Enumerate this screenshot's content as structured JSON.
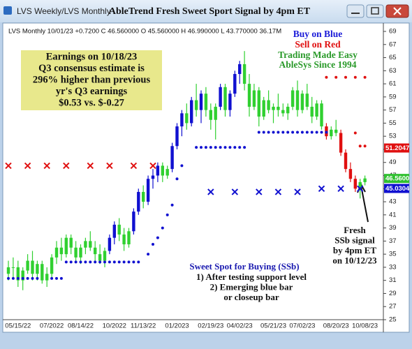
{
  "window_title": "LVS Weekly/LVS  Monthly",
  "chart_data": {
    "type": "candlestick",
    "title": "AbleTrend Fresh Sweet Sport Signal by 4pm ET",
    "info": "LVS  Monthly 10/01/23 +0.7200 C 46.560000 O 45.560000 H 46.990000 L 43.770000 36.17M",
    "legend": [
      {
        "text": "Buy on Blue",
        "color": "#1a1ad8"
      },
      {
        "text": "Sell on Red",
        "color": "#e01010"
      },
      {
        "text": "Trading Made Easy",
        "color": "#2a9a2a"
      },
      {
        "text": "AbleSys Since 1994",
        "color": "#2a9a2a"
      }
    ],
    "colors": {
      "b": "#1010d0",
      "g": "#30d030",
      "r": "#e01010"
    },
    "categories": [
      null,
      null,
      "05/15/22",
      null,
      null,
      null,
      null,
      null,
      null,
      "07/2022",
      null,
      null,
      null,
      null,
      null,
      "08/14/22",
      null,
      null,
      null,
      null,
      null,
      null,
      "10/2022",
      null,
      null,
      null,
      null,
      null,
      "11/13/22",
      null,
      null,
      null,
      null,
      null,
      null,
      "01/2023",
      null,
      null,
      null,
      null,
      null,
      null,
      "02/19/23",
      null,
      null,
      null,
      null,
      null,
      "04/02/23",
      null,
      null,
      null,
      null,
      null,
      null,
      "05/21/23",
      null,
      null,
      null,
      null,
      null,
      "07/02/23",
      null,
      null,
      null,
      null,
      null,
      null,
      "08/20/23",
      null,
      null,
      null,
      null,
      null,
      "10/08/23"
    ],
    "candles": [
      [
        32,
        34,
        31,
        33,
        "g"
      ],
      [
        33,
        34.5,
        31.5,
        33,
        "g"
      ],
      [
        33,
        34,
        30,
        31,
        "g"
      ],
      [
        31,
        33,
        29.5,
        32.5,
        "g"
      ],
      [
        32.5,
        35,
        32,
        34,
        "g"
      ],
      [
        34,
        35.5,
        31,
        32,
        "g"
      ],
      [
        32,
        34,
        31,
        33.5,
        "g"
      ],
      [
        33.5,
        34,
        30.5,
        31,
        "g"
      ],
      [
        31,
        33,
        30,
        32,
        "g"
      ],
      [
        32,
        35,
        31.5,
        34.5,
        "g"
      ],
      [
        34.5,
        37,
        33.5,
        36,
        "g"
      ],
      [
        36,
        37.5,
        34,
        35,
        "g"
      ],
      [
        35,
        38,
        34.5,
        37.5,
        "g"
      ],
      [
        37.5,
        38,
        35,
        36,
        "g"
      ],
      [
        36,
        37,
        34,
        34.5,
        "g"
      ],
      [
        34.5,
        36.5,
        33.5,
        36,
        "g"
      ],
      [
        36,
        37.5,
        35,
        37,
        "g"
      ],
      [
        37,
        38.5,
        35.5,
        36,
        "g"
      ],
      [
        36,
        37,
        34,
        35,
        "g"
      ],
      [
        35,
        36.5,
        33.5,
        34,
        "g"
      ],
      [
        34,
        36,
        33,
        35.5,
        "g"
      ],
      [
        35.5,
        38,
        35,
        37.5,
        "b"
      ],
      [
        37.5,
        40,
        36.5,
        39.5,
        "b"
      ],
      [
        39.5,
        40.5,
        37,
        38,
        "g"
      ],
      [
        38,
        39,
        35.5,
        36.5,
        "g"
      ],
      [
        36.5,
        39,
        36,
        38.5,
        "g"
      ],
      [
        38.5,
        42,
        38,
        41.5,
        "b"
      ],
      [
        41.5,
        45,
        41,
        44.5,
        "b"
      ],
      [
        44.5,
        45.5,
        42,
        43,
        "g"
      ],
      [
        43,
        47,
        42.5,
        46.5,
        "b"
      ],
      [
        46.5,
        48,
        45,
        47,
        "b"
      ],
      [
        47,
        49,
        46,
        48.5,
        "b"
      ],
      [
        48.5,
        49,
        46,
        47,
        "g"
      ],
      [
        47,
        48.5,
        46.5,
        48,
        "g"
      ],
      [
        48,
        52,
        47.5,
        51.5,
        "b"
      ],
      [
        51.5,
        55,
        51,
        54.5,
        "b"
      ],
      [
        54.5,
        57,
        53,
        56.5,
        "b"
      ],
      [
        56.5,
        58,
        54,
        55,
        "g"
      ],
      [
        55,
        59,
        54.5,
        58.5,
        "b"
      ],
      [
        58.5,
        61,
        56,
        57,
        "g"
      ],
      [
        57,
        60,
        55,
        59.5,
        "b"
      ],
      [
        59.5,
        60.5,
        56,
        57,
        "g"
      ],
      [
        57,
        58,
        54,
        55.5,
        "g"
      ],
      [
        55.5,
        58,
        52.5,
        57.5,
        "g"
      ],
      [
        57.5,
        61,
        57,
        60.5,
        "b"
      ],
      [
        60.5,
        61,
        56,
        57,
        "g"
      ],
      [
        57,
        60,
        56,
        59.5,
        "b"
      ],
      [
        59.5,
        63,
        59,
        62.5,
        "b"
      ],
      [
        62.5,
        64.5,
        61,
        64,
        "b"
      ],
      [
        64,
        66,
        60,
        61,
        "g"
      ],
      [
        61,
        62.5,
        56,
        57.5,
        "g"
      ],
      [
        57.5,
        61,
        57,
        60,
        "g"
      ],
      [
        60,
        60.5,
        54.5,
        56,
        "g"
      ],
      [
        56,
        59,
        55.5,
        58.5,
        "g"
      ],
      [
        58.5,
        60,
        56.5,
        57,
        "g"
      ],
      [
        57,
        58,
        55,
        57.5,
        "g"
      ],
      [
        57.5,
        59.5,
        56,
        57,
        "g"
      ],
      [
        57,
        58,
        56,
        56.5,
        "g"
      ],
      [
        56.5,
        58,
        55.5,
        57.5,
        "g"
      ],
      [
        57.5,
        60.5,
        57,
        60,
        "g"
      ],
      [
        60,
        61.5,
        56,
        57,
        "g"
      ],
      [
        57,
        60,
        56.5,
        59.5,
        "g"
      ],
      [
        59.5,
        61,
        57,
        57.5,
        "g"
      ],
      [
        57.5,
        59,
        55,
        56,
        "g"
      ],
      [
        56,
        58.5,
        55.5,
        58,
        "g"
      ],
      [
        58,
        58.5,
        54,
        54.5,
        "g"
      ],
      [
        54.5,
        55,
        52.5,
        53,
        "r"
      ],
      [
        53,
        54.5,
        52.5,
        54,
        "g"
      ],
      [
        54,
        55.5,
        53,
        53.5,
        "g"
      ],
      [
        53.5,
        54,
        50,
        50.5,
        "r"
      ],
      [
        50.5,
        51,
        47.5,
        48,
        "r"
      ],
      [
        48,
        49,
        46,
        46.5,
        "r"
      ],
      [
        46.5,
        47,
        44.5,
        45,
        "r"
      ],
      [
        45,
        46.5,
        43.5,
        46,
        "g"
      ],
      [
        46,
        47,
        45.5,
        46.56,
        "g"
      ]
    ],
    "support_dots": [
      {
        "from": 0,
        "to": 6,
        "value": 31.3
      },
      {
        "from": 9,
        "to": 11,
        "value": 31.3
      },
      {
        "from": 12,
        "to": 27,
        "value": 33.8
      },
      {
        "from": 29,
        "to": 29,
        "value": 35
      },
      {
        "from": 30,
        "to": 30,
        "value": 36.5
      },
      {
        "from": 31,
        "to": 31,
        "value": 37.5
      },
      {
        "from": 32,
        "to": 32,
        "value": 39
      },
      {
        "from": 33,
        "to": 33,
        "value": 41
      },
      {
        "from": 34,
        "to": 34,
        "value": 42.5
      },
      {
        "from": 35,
        "to": 35,
        "value": 46.5
      },
      {
        "from": 36,
        "to": 36,
        "value": 48.5
      },
      {
        "from": 39,
        "to": 49,
        "value": 51.3
      },
      {
        "from": 52,
        "to": 66,
        "value": 53.6
      }
    ],
    "red_dots": [
      [
        66,
        62
      ],
      [
        68,
        62
      ],
      [
        70,
        62
      ],
      [
        72,
        62
      ],
      [
        74,
        62
      ],
      [
        72,
        53.5
      ],
      [
        73,
        51.5
      ],
      [
        74,
        51.5
      ]
    ],
    "x_marks": [
      [
        0,
        48.5,
        "r"
      ],
      [
        4,
        48.5,
        "r"
      ],
      [
        8,
        48.5,
        "r"
      ],
      [
        12,
        48.5,
        "r"
      ],
      [
        17,
        48.5,
        "r"
      ],
      [
        21,
        48.5,
        "r"
      ],
      [
        26,
        48.5,
        "r"
      ],
      [
        30,
        48.5,
        "r"
      ],
      [
        42,
        44.5,
        "b"
      ],
      [
        47,
        44.5,
        "b"
      ],
      [
        52,
        44.5,
        "b"
      ],
      [
        56,
        44.5,
        "b"
      ],
      [
        60,
        44.5,
        "b"
      ],
      [
        65,
        45,
        "b"
      ],
      [
        69,
        45,
        "b"
      ],
      [
        73,
        45,
        "b"
      ]
    ],
    "price_tags": [
      {
        "value": 51.2047,
        "label": "51.2047",
        "color": "#e01010"
      },
      {
        "value": 46.56,
        "label": "46.5600",
        "color": "#30c030"
      },
      {
        "value": 45.0304,
        "label": "45.0304",
        "color": "#1010d0"
      }
    ],
    "ylim": [
      25,
      69
    ],
    "yticks": [
      25,
      27,
      29,
      31,
      33,
      35,
      37,
      39,
      41,
      43,
      45,
      47,
      49,
      51,
      53,
      55,
      57,
      59,
      61,
      63,
      65,
      67,
      69
    ],
    "earnings_box": [
      "Earnings on 10/18/23",
      "Q3 consensus estimate is",
      "296% higher than previous",
      "yr's Q3 earnings",
      "$0.53 vs. $-0.27"
    ],
    "fresh_note": [
      "Fresh",
      "SSb signal",
      "by 4pm ET",
      "on 10/12/23"
    ],
    "ssb_title": "Sweet Spot for Buying (SSb)",
    "ssb_lines": [
      "1) After testing support level",
      "2) Emerging blue bar",
      "or closeup bar"
    ]
  }
}
